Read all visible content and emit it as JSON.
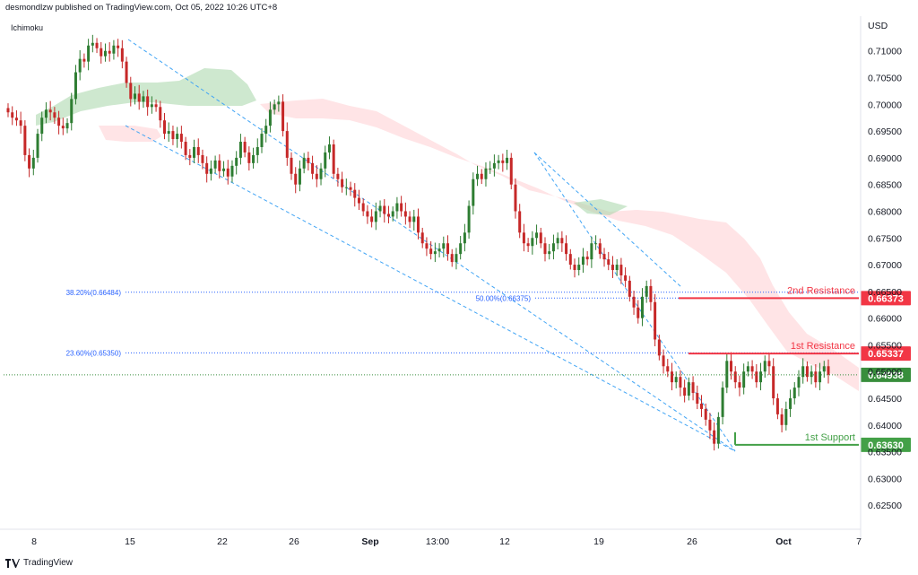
{
  "header": {
    "text": "desmondlzw published on TradingView.com, Oct 05, 2022 10:26 UTC+8"
  },
  "indicator": "Ichimoku",
  "footer": {
    "brand": "TradingView",
    "logo_icon": "tradingview-logo-icon"
  },
  "colors": {
    "up": "#26a69a",
    "down": "#ef5350",
    "upCandle": "#2e7d32",
    "downCandle": "#c62828",
    "cloudBull": "#a5d6a7",
    "cloudBear": "#ffcdd2",
    "trend": "#42a5f5",
    "resistance": "#f23645",
    "support": "#43a047",
    "price": "#388e3c",
    "fib": "#2962ff"
  },
  "chart_data": {
    "type": "candlestick",
    "currency": "USD",
    "ylim": [
      0.6205,
      0.7165
    ],
    "y_ticks": [
      "0.71000",
      "0.70500",
      "0.70000",
      "0.69500",
      "0.69000",
      "0.68500",
      "0.68000",
      "0.67500",
      "0.67000",
      "0.66500",
      "0.66000",
      "0.65500",
      "0.65000",
      "0.64500",
      "0.64000",
      "0.63500",
      "0.63000",
      "0.62500"
    ],
    "x_ticks": [
      "8",
      "15",
      "22",
      "26",
      "Sep",
      "13:00",
      "12",
      "19",
      "26",
      "Oct",
      "7"
    ],
    "x_tick_bold": [
      "Sep",
      "Oct"
    ],
    "levels": [
      {
        "name": "2nd Resistance",
        "value": 0.66373,
        "label": "0.66373",
        "kind": "resistance"
      },
      {
        "name": "1st Resistance",
        "value": 0.65337,
        "label": "0.65337",
        "kind": "resistance"
      },
      {
        "name": "",
        "value": 0.64938,
        "label": "0.64938",
        "kind": "last-price"
      },
      {
        "name": "1st Support",
        "value": 0.6363,
        "label": "0.63630",
        "kind": "support"
      }
    ],
    "fibonacci": [
      {
        "label": "38.20%(0.66484)",
        "value": 0.66484
      },
      {
        "label": "23.60%(0.65350)",
        "value": 0.6535
      },
      {
        "label": "50.00%(0.66375)",
        "value": 0.66375
      }
    ],
    "candles_close": [
      0.6985,
      0.6975,
      0.697,
      0.696,
      0.6905,
      0.688,
      0.69,
      0.6945,
      0.6975,
      0.699,
      0.6985,
      0.6975,
      0.696,
      0.6955,
      0.6965,
      0.701,
      0.706,
      0.7085,
      0.708,
      0.711,
      0.7115,
      0.7105,
      0.709,
      0.71,
      0.7095,
      0.711,
      0.7105,
      0.708,
      0.704,
      0.701,
      0.702,
      0.7005,
      0.7015,
      0.6995,
      0.7,
      0.6995,
      0.697,
      0.6945,
      0.695,
      0.6935,
      0.6945,
      0.693,
      0.6905,
      0.69,
      0.692,
      0.6905,
      0.689,
      0.687,
      0.688,
      0.6895,
      0.6875,
      0.688,
      0.6865,
      0.6885,
      0.69,
      0.693,
      0.691,
      0.689,
      0.6905,
      0.692,
      0.6945,
      0.696,
      0.699,
      0.7,
      0.7005,
      0.695,
      0.69,
      0.687,
      0.685,
      0.688,
      0.69,
      0.689,
      0.687,
      0.686,
      0.688,
      0.691,
      0.6925,
      0.687,
      0.686,
      0.6845,
      0.6845,
      0.684,
      0.6825,
      0.6815,
      0.68,
      0.679,
      0.678,
      0.68,
      0.681,
      0.6795,
      0.679,
      0.68,
      0.6815,
      0.68,
      0.679,
      0.678,
      0.679,
      0.676,
      0.674,
      0.673,
      0.672,
      0.6725,
      0.673,
      0.674,
      0.672,
      0.6705,
      0.672,
      0.674,
      0.676,
      0.681,
      0.686,
      0.687,
      0.686,
      0.688,
      0.688,
      0.689,
      0.6895,
      0.689,
      0.69,
      0.685,
      0.68,
      0.676,
      0.674,
      0.6735,
      0.675,
      0.676,
      0.674,
      0.672,
      0.6725,
      0.674,
      0.675,
      0.674,
      0.672,
      0.67,
      0.669,
      0.67,
      0.6715,
      0.671,
      0.674,
      0.674,
      0.672,
      0.671,
      0.67,
      0.669,
      0.67,
      0.668,
      0.667,
      0.664,
      0.662,
      0.66,
      0.664,
      0.666,
      0.663,
      0.656,
      0.653,
      0.651,
      0.65,
      0.648,
      0.649,
      0.647,
      0.6455,
      0.648,
      0.646,
      0.644,
      0.643,
      0.641,
      0.639,
      0.6365,
      0.6415,
      0.647,
      0.652,
      0.65,
      0.648,
      0.647,
      0.65,
      0.651,
      0.65,
      0.648,
      0.65,
      0.652,
      0.651,
      0.645,
      0.642,
      0.64,
      0.643,
      0.645,
      0.647,
      0.649,
      0.651,
      0.649,
      0.65,
      0.648,
      0.65,
      0.651,
      0.6494
    ]
  }
}
